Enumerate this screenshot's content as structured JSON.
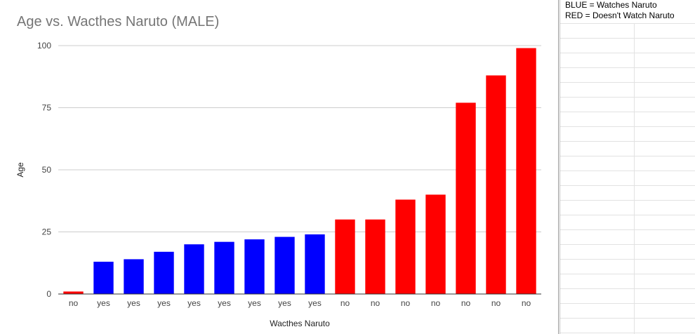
{
  "chart_data": {
    "type": "bar",
    "title": "Age vs. Wacthes Naruto (MALE)",
    "xlabel": "Wacthes Naruto",
    "ylabel": "Age",
    "ylim": [
      0,
      100
    ],
    "yticks": [
      "0",
      "25",
      "50",
      "75",
      "100"
    ],
    "grid": true,
    "categories": [
      "no",
      "yes",
      "yes",
      "yes",
      "yes",
      "yes",
      "yes",
      "yes",
      "yes",
      "no",
      "no",
      "no",
      "no",
      "no",
      "no",
      "no"
    ],
    "values": [
      1,
      13,
      14,
      17,
      20,
      21,
      22,
      23,
      24,
      30,
      30,
      38,
      40,
      77,
      88,
      99
    ],
    "bar_colors": [
      "#ff0000",
      "#0000ff",
      "#0000ff",
      "#0000ff",
      "#0000ff",
      "#0000ff",
      "#0000ff",
      "#0000ff",
      "#0000ff",
      "#ff0000",
      "#ff0000",
      "#ff0000",
      "#ff0000",
      "#ff0000",
      "#ff0000",
      "#ff0000"
    ]
  },
  "colors": {
    "title": "#757575",
    "axis_text": "#444444",
    "gridline": "#cccccc",
    "blue": "#0000ff",
    "red": "#ff0000"
  },
  "sheet": {
    "legend_line1": "BLUE = Watches Naruto",
    "legend_line2": "RED = Doesn't Watch Naruto"
  }
}
